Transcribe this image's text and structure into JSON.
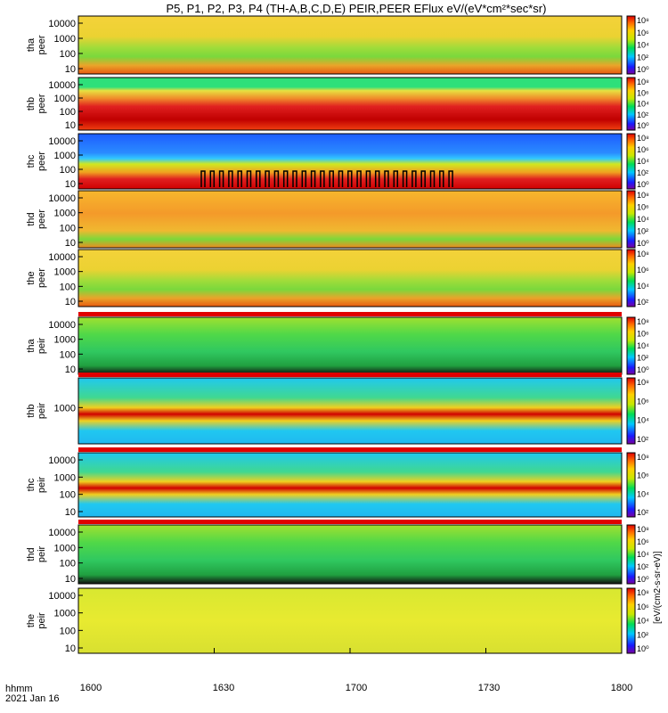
{
  "title": "P5, P1, P2, P3, P4 (TH-A,B,C,D,E) PEIR,PEER EFlux eV/(eV*cm²*sec*sr)",
  "x_axis": {
    "row_label": "hhmm",
    "date_label": "2021 Jan 16",
    "ticks": [
      "1600",
      "1630",
      "1700",
      "1730",
      "1800"
    ]
  },
  "colorbar_label": "[eV/(cm2-s-sr-eV)]",
  "chart_data": [
    {
      "type": "heatmap",
      "probe": "tha",
      "product": "peer",
      "ylabel": [
        "tha",
        "peer"
      ],
      "yticks": [
        "10000",
        "1000",
        "100",
        "10"
      ],
      "cbar_ticks": [
        "10⁸",
        "10⁶",
        "10⁴",
        "10²",
        "10⁰"
      ]
    },
    {
      "type": "heatmap",
      "probe": "thb",
      "product": "peer",
      "ylabel": [
        "thb",
        "peer"
      ],
      "yticks": [
        "10000",
        "1000",
        "100",
        "10"
      ],
      "cbar_ticks": [
        "10⁸",
        "10⁶",
        "10⁴",
        "10²",
        "10⁰"
      ]
    },
    {
      "type": "heatmap",
      "probe": "thc",
      "product": "peer",
      "ylabel": [
        "thc",
        "peer"
      ],
      "yticks": [
        "10000",
        "1000",
        "100",
        "10"
      ],
      "cbar_ticks": [
        "10⁸",
        "10⁶",
        "10⁴",
        "10²",
        "10⁰"
      ]
    },
    {
      "type": "heatmap",
      "probe": "thd",
      "product": "peer",
      "ylabel": [
        "thd",
        "peer"
      ],
      "yticks": [
        "10000",
        "1000",
        "100",
        "10"
      ],
      "cbar_ticks": [
        "10⁸",
        "10⁶",
        "10⁴",
        "10²",
        "10⁰"
      ]
    },
    {
      "type": "heatmap",
      "probe": "the",
      "product": "peer",
      "ylabel": [
        "the",
        "peer"
      ],
      "yticks": [
        "10000",
        "1000",
        "100",
        "10"
      ],
      "cbar_ticks": [
        "10⁸",
        "10⁶",
        "10⁴",
        "10²"
      ]
    },
    {
      "type": "heatmap",
      "probe": "tha",
      "product": "peir",
      "ylabel": [
        "tha",
        "peir"
      ],
      "yticks": [
        "10000",
        "1000",
        "100",
        "10"
      ],
      "cbar_ticks": [
        "10⁸",
        "10⁶",
        "10⁴",
        "10²",
        "10⁰"
      ]
    },
    {
      "type": "heatmap",
      "probe": "thb",
      "product": "peir",
      "ylabel": [
        "thb",
        "peir"
      ],
      "yticks": [
        "1000"
      ],
      "cbar_ticks": [
        "10⁸",
        "10⁶",
        "10⁴",
        "10²"
      ]
    },
    {
      "type": "heatmap",
      "probe": "thc",
      "product": "peir",
      "ylabel": [
        "thc",
        "peir"
      ],
      "yticks": [
        "10000",
        "1000",
        "100",
        "10"
      ],
      "cbar_ticks": [
        "10⁸",
        "10⁶",
        "10⁴",
        "10²"
      ]
    },
    {
      "type": "heatmap",
      "probe": "thd",
      "product": "peir",
      "ylabel": [
        "thd",
        "peir"
      ],
      "yticks": [
        "10000",
        "1000",
        "100",
        "10"
      ],
      "cbar_ticks": [
        "10⁸",
        "10⁶",
        "10⁴",
        "10²",
        "10⁰"
      ]
    },
    {
      "type": "heatmap",
      "probe": "the",
      "product": "peir",
      "ylabel": [
        "the",
        "peir"
      ],
      "yticks": [
        "10000",
        "1000",
        "100",
        "10"
      ],
      "cbar_ticks": [
        "10⁸",
        "10⁶",
        "10⁴",
        "10²",
        "10⁰"
      ]
    }
  ]
}
